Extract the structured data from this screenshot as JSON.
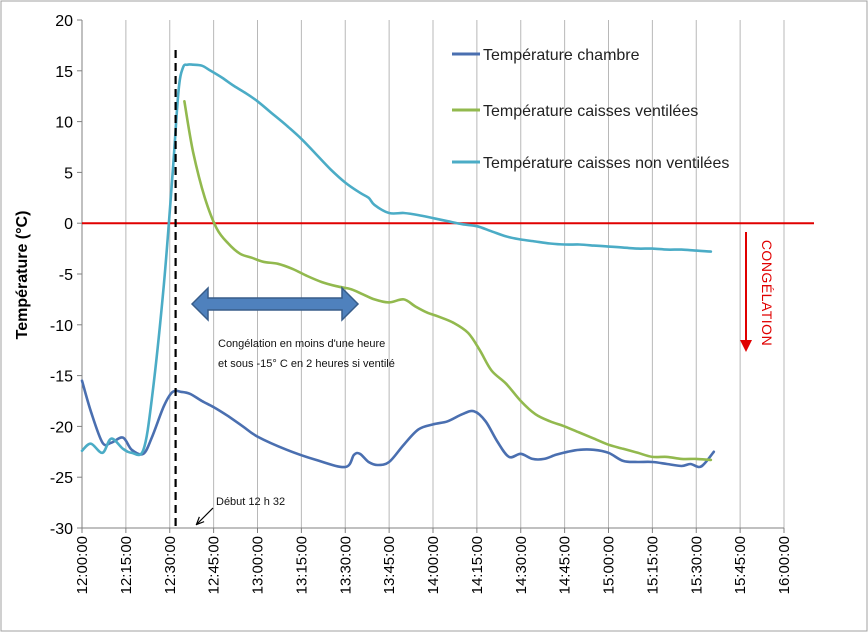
{
  "chart_data": {
    "type": "line",
    "title": "",
    "ylabel": "Température (°C)",
    "xlabel": "",
    "ylim": [
      -30,
      20
    ],
    "y_ticks": [
      20,
      15,
      10,
      5,
      0,
      -5,
      -10,
      -15,
      -20,
      -25,
      -30
    ],
    "y_tick_labels": [
      "20",
      "15",
      "10",
      "5",
      "0",
      "-5",
      "-10",
      "-15",
      "-20",
      "-25",
      "-30"
    ],
    "x_range": [
      "12:00:00",
      "16:00:00"
    ],
    "x_tick_labels": [
      "12:00:00",
      "12:15:00",
      "12:30:00",
      "12:45:00",
      "13:00:00",
      "13:15:00",
      "13:30:00",
      "13:45:00",
      "14:00:00",
      "14:15:00",
      "14:30:00",
      "14:45:00",
      "15:00:00",
      "15:15:00",
      "15:30:00",
      "15:45:00",
      "16:00:00"
    ],
    "grid": "vertical",
    "legend_position": "top-right",
    "series": [
      {
        "name": "Température chambre",
        "color": "#4a6fb0",
        "x": [
          "12:00:00",
          "12:03:00",
          "12:07:00",
          "12:10:00",
          "12:14:00",
          "12:17:00",
          "12:21:00",
          "12:24:00",
          "12:28:00",
          "12:31:00",
          "12:34:00",
          "12:37:00",
          "12:41:00",
          "12:45:00",
          "12:50:00",
          "12:55:00",
          "13:00:00",
          "13:10:00",
          "13:20:00",
          "13:30:00",
          "13:33:00",
          "13:35:00",
          "13:38:00",
          "13:41:00",
          "13:45:00",
          "13:50:00",
          "13:55:00",
          "14:00:00",
          "14:05:00",
          "14:10:00",
          "14:14:00",
          "14:18:00",
          "14:22:00",
          "14:26:00",
          "14:30:00",
          "14:34:00",
          "14:38:00",
          "14:42:00",
          "14:46:00",
          "14:50:00",
          "14:55:00",
          "15:00:00",
          "15:05:00",
          "15:10:00",
          "15:15:00",
          "15:20:00",
          "15:25:00",
          "15:28:00",
          "15:31:00",
          "15:33:00",
          "15:36:00"
        ],
        "values": [
          -15.5,
          -18.5,
          -21.6,
          -21.6,
          -21.1,
          -22.3,
          -22.7,
          -21.0,
          -18.0,
          -16.6,
          -16.6,
          -16.8,
          -17.5,
          -18.1,
          -19.0,
          -20.0,
          -21.0,
          -22.3,
          -23.3,
          -24.0,
          -22.8,
          -22.7,
          -23.5,
          -23.8,
          -23.5,
          -21.8,
          -20.3,
          -19.8,
          -19.5,
          -18.8,
          -18.5,
          -19.5,
          -21.5,
          -23.0,
          -22.7,
          -23.2,
          -23.2,
          -22.8,
          -22.5,
          -22.3,
          -22.3,
          -22.6,
          -23.4,
          -23.5,
          -23.5,
          -23.7,
          -23.9,
          -23.7,
          -24.0,
          -23.6,
          -22.5
        ]
      },
      {
        "name": "Température caisses ventilées",
        "color": "#92b94e",
        "x": [
          "12:35:00",
          "12:38:00",
          "12:42:00",
          "12:46:00",
          "12:50:00",
          "12:54:00",
          "12:58:00",
          "13:02:00",
          "13:07:00",
          "13:12:00",
          "13:17:00",
          "13:22:00",
          "13:27:00",
          "13:32:00",
          "13:36:00",
          "13:40:00",
          "13:45:00",
          "13:50:00",
          "13:54:00",
          "13:58:00",
          "14:02:00",
          "14:07:00",
          "14:12:00",
          "14:16:00",
          "14:20:00",
          "14:25:00",
          "14:30:00",
          "14:35:00",
          "14:40:00",
          "14:45:00",
          "14:50:00",
          "14:55:00",
          "15:00:00",
          "15:05:00",
          "15:10:00",
          "15:15:00",
          "15:20:00",
          "15:25:00",
          "15:30:00",
          "15:35:00"
        ],
        "values": [
          12.0,
          7.0,
          2.5,
          -0.5,
          -2.0,
          -3.0,
          -3.4,
          -3.8,
          -4.0,
          -4.5,
          -5.2,
          -5.8,
          -6.2,
          -6.5,
          -7.0,
          -7.5,
          -7.8,
          -7.5,
          -8.2,
          -8.8,
          -9.2,
          -9.8,
          -10.8,
          -12.5,
          -14.5,
          -15.8,
          -17.5,
          -18.8,
          -19.5,
          -20.0,
          -20.6,
          -21.2,
          -21.8,
          -22.2,
          -22.6,
          -23.0,
          -23.0,
          -23.2,
          -23.2,
          -23.3
        ]
      },
      {
        "name": "Température caisses non ventilées",
        "color": "#4bacc6",
        "x": [
          "12:00:00",
          "12:03:00",
          "12:07:00",
          "12:10:00",
          "12:14:00",
          "12:17:00",
          "12:21:00",
          "12:24:00",
          "12:28:00",
          "12:31:00",
          "12:33:00",
          "12:34:30",
          "12:36:00",
          "12:38:00",
          "12:41:00",
          "12:44:00",
          "12:48:00",
          "12:52:00",
          "12:56:00",
          "13:00:00",
          "13:05:00",
          "13:10:00",
          "13:15:00",
          "13:20:00",
          "13:25:00",
          "13:30:00",
          "13:35:00",
          "13:38:00",
          "13:40:00",
          "13:45:00",
          "13:50:00",
          "13:55:00",
          "14:00:00",
          "14:05:00",
          "14:10:00",
          "14:15:00",
          "14:20:00",
          "14:25:00",
          "14:30:00",
          "14:35:00",
          "14:40:00",
          "14:45:00",
          "14:50:00",
          "14:55:00",
          "15:00:00",
          "15:05:00",
          "15:10:00",
          "15:15:00",
          "15:20:00",
          "15:25:00",
          "15:30:00",
          "15:35:00"
        ],
        "values": [
          -22.4,
          -21.7,
          -22.6,
          -21.2,
          -22.2,
          -22.6,
          -22.3,
          -17.0,
          -6.0,
          5.0,
          13.0,
          15.3,
          15.6,
          15.6,
          15.5,
          15.0,
          14.3,
          13.5,
          12.8,
          12.0,
          10.8,
          9.6,
          8.3,
          6.8,
          5.3,
          4.0,
          3.0,
          2.5,
          1.8,
          1.0,
          1.0,
          0.8,
          0.5,
          0.2,
          -0.1,
          -0.3,
          -0.8,
          -1.3,
          -1.6,
          -1.8,
          -2.0,
          -2.1,
          -2.1,
          -2.2,
          -2.3,
          -2.4,
          -2.5,
          -2.5,
          -2.6,
          -2.6,
          -2.7,
          -2.8
        ]
      }
    ],
    "reference_lines": [
      {
        "y": 0,
        "color": "#e00000"
      }
    ],
    "annotations": {
      "start_line_x": "12:32:00",
      "start_label": "Début 12 h 32",
      "arrow_note_line1": "Congélation en moins d'une heure",
      "arrow_note_line2": "et sous -15° C  en 2 heures si ventilé",
      "arrow_color": "#4f81bd",
      "freeze_label": "CONGÉLATION",
      "freeze_color": "#e00000"
    }
  }
}
